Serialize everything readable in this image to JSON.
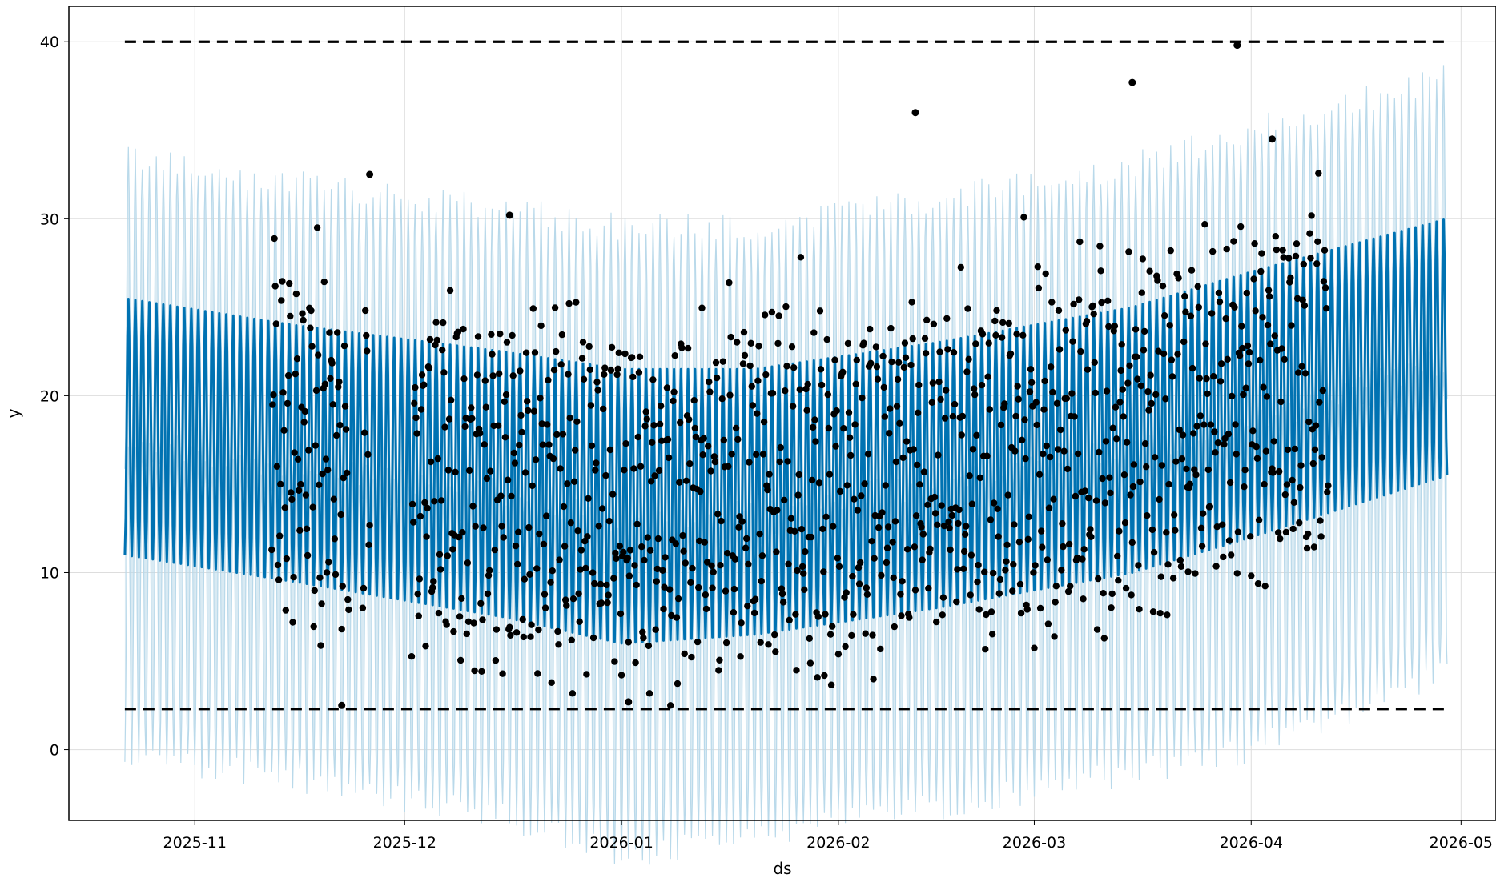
{
  "chart_data": {
    "type": "line",
    "title": "",
    "xlabel": "ds",
    "ylabel": "y",
    "x_range": [
      "2025-10-14",
      "2026-05-06"
    ],
    "ylim": [
      -4,
      42
    ],
    "grid": true,
    "x_ticks": [
      "2025-11-01",
      "2025-12-01",
      "2026-01-01",
      "2026-02-01",
      "2026-03-01",
      "2026-04-01",
      "2026-05-01"
    ],
    "x_tick_labels": [
      "2025-11",
      "2025-12",
      "2026-01",
      "2026-02",
      "2026-03",
      "2026-04",
      "2026-05"
    ],
    "y_ticks": [
      0,
      10,
      20,
      30,
      40
    ],
    "y_tick_labels": [
      "0",
      "10",
      "20",
      "30",
      "40"
    ],
    "forecast_start": "2025-10-22",
    "forecast_end": "2026-04-29",
    "cap": 40,
    "floor": 2.3,
    "colors": {
      "forecast_line": "#0072b2",
      "uncertainty_band": "#b9d9ea",
      "observations": "#000000",
      "cap_floor": "#000000",
      "grid": "#dddddd"
    },
    "series": [
      {
        "type": "line",
        "role": "forecast",
        "daily_min": [
          {
            "x": "2025-10-22",
            "y": 11.0
          },
          {
            "x": "2025-11-15",
            "y": 9.5
          },
          {
            "x": "2025-12-15",
            "y": 7.5
          },
          {
            "x": "2026-01-01",
            "y": 6.0
          },
          {
            "x": "2026-01-20",
            "y": 6.5
          },
          {
            "x": "2026-02-15",
            "y": 8.0
          },
          {
            "x": "2026-03-15",
            "y": 10.0
          },
          {
            "x": "2026-04-01",
            "y": 12.0
          },
          {
            "x": "2026-04-29",
            "y": 15.5
          }
        ],
        "daily_max": [
          {
            "x": "2025-10-22",
            "y": 25.5
          },
          {
            "x": "2025-11-15",
            "y": 24.0
          },
          {
            "x": "2025-12-15",
            "y": 22.5
          },
          {
            "x": "2026-01-01",
            "y": 21.5
          },
          {
            "x": "2026-01-20",
            "y": 21.5
          },
          {
            "x": "2026-02-15",
            "y": 23.0
          },
          {
            "x": "2026-03-15",
            "y": 25.0
          },
          {
            "x": "2026-04-01",
            "y": 27.0
          },
          {
            "x": "2026-04-29",
            "y": 30.0
          }
        ]
      },
      {
        "type": "area",
        "role": "uncertainty",
        "lower": [
          {
            "x": "2025-10-22",
            "y": 4.5
          },
          {
            "x": "2025-11-15",
            "y": 3.0
          },
          {
            "x": "2025-12-15",
            "y": 1.0
          },
          {
            "x": "2026-01-01",
            "y": -1.0
          },
          {
            "x": "2026-01-20",
            "y": 0.0
          },
          {
            "x": "2026-02-15",
            "y": 1.5
          },
          {
            "x": "2026-03-15",
            "y": 3.5
          },
          {
            "x": "2026-04-01",
            "y": 5.0
          },
          {
            "x": "2026-04-29",
            "y": 9.0
          }
        ],
        "upper": [
          {
            "x": "2025-10-22",
            "y": 32.0
          },
          {
            "x": "2025-11-15",
            "y": 30.5
          },
          {
            "x": "2025-12-15",
            "y": 29.0
          },
          {
            "x": "2026-01-01",
            "y": 28.0
          },
          {
            "x": "2026-01-20",
            "y": 28.0
          },
          {
            "x": "2026-02-15",
            "y": 29.5
          },
          {
            "x": "2026-03-15",
            "y": 31.5
          },
          {
            "x": "2026-04-01",
            "y": 33.5
          },
          {
            "x": "2026-04-29",
            "y": 36.5
          }
        ]
      },
      {
        "type": "scatter",
        "role": "observations",
        "segments": [
          {
            "start": "2025-11-12",
            "end": "2025-11-23",
            "min": 2.5,
            "max": 29.5
          },
          {
            "start": "2025-11-25",
            "end": "2025-11-26",
            "min": 8.0,
            "max": 32.5
          },
          {
            "start": "2025-12-02",
            "end": "2026-04-12",
            "min": 2.5,
            "max": 40.0
          }
        ],
        "highlights": [
          {
            "x": "2025-11-22",
            "y": 2.5
          },
          {
            "x": "2025-11-26",
            "y": 32.5
          },
          {
            "x": "2025-12-16",
            "y": 30.2
          },
          {
            "x": "2026-01-02",
            "y": 2.7
          },
          {
            "x": "2026-02-12",
            "y": 36.0
          },
          {
            "x": "2026-03-15",
            "y": 37.7
          },
          {
            "x": "2026-03-30",
            "y": 39.8
          },
          {
            "x": "2026-04-04",
            "y": 34.5
          }
        ]
      }
    ]
  }
}
